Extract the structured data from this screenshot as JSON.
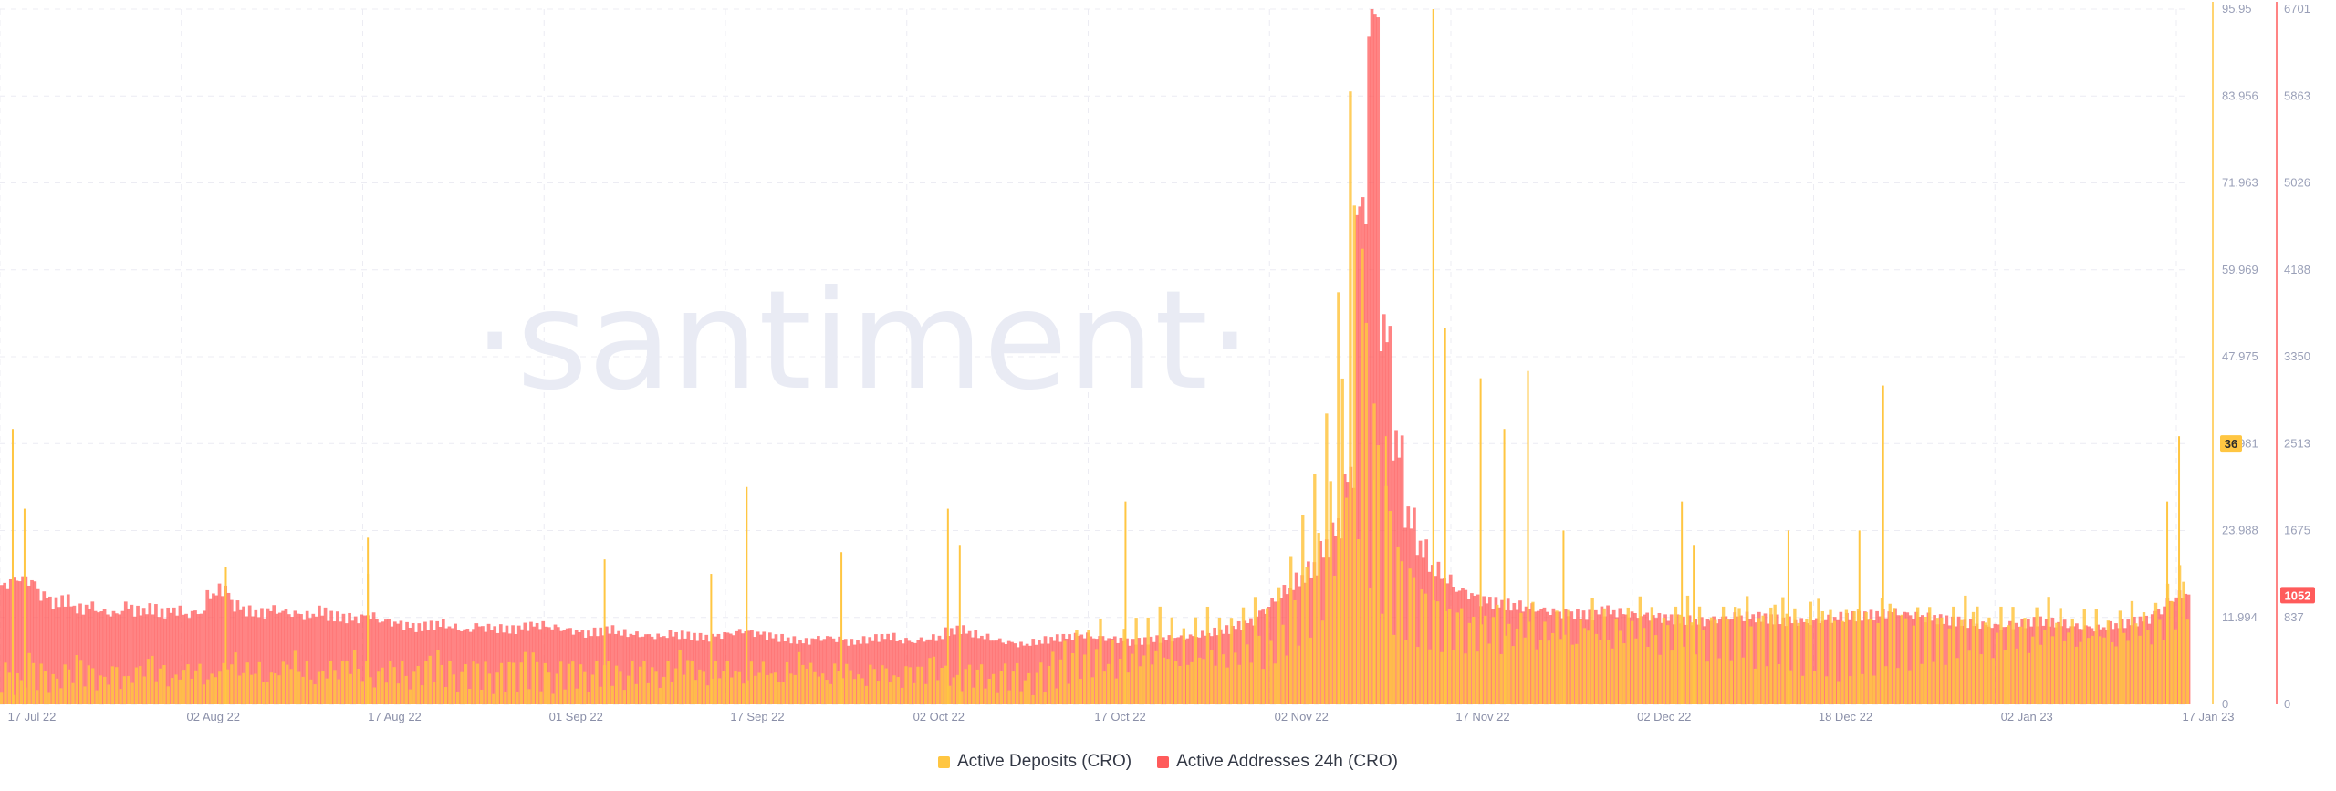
{
  "chart_data": {
    "type": "bar",
    "title": "",
    "watermark": "·santiment·",
    "x_ticks": [
      "17 Jul 22",
      "02 Aug 22",
      "17 Aug 22",
      "01 Sep 22",
      "17 Sep 22",
      "02 Oct 22",
      "17 Oct 22",
      "02 Nov 22",
      "17 Nov 22",
      "02 Dec 22",
      "18 Dec 22",
      "02 Jan 23",
      "17 Jan 23"
    ],
    "y_left_ticks": [
      "95.95",
      "83.956",
      "71.963",
      "59.969",
      "47.975",
      "35.981",
      "23.988",
      "11.994",
      "0"
    ],
    "y_right_ticks": [
      "6701",
      "5863",
      "5026",
      "4188",
      "3350",
      "2513",
      "1675",
      "837",
      "0"
    ],
    "y_left_range": [
      0,
      95.95
    ],
    "y_right_range": [
      0,
      6701
    ],
    "grid": true,
    "legend_position": "bottom-center",
    "current_values": {
      "deposits": "36",
      "addresses": "1052"
    },
    "colors": {
      "deposits": "#ffc642",
      "addresses": "#ff5b5b"
    },
    "x_date_range": [
      "2022-07-17",
      "2023-01-18"
    ],
    "series": [
      {
        "name": "Active Deposits (CRO)",
        "axis": "left",
        "daily_baseline": [
          4,
          3,
          5,
          4,
          3,
          4,
          5,
          4,
          3,
          4,
          3,
          4,
          5,
          4,
          3,
          4,
          4,
          3,
          4,
          5,
          4,
          4,
          3,
          4,
          5,
          4,
          3,
          4,
          4,
          5,
          4,
          3,
          4,
          4,
          3,
          4,
          5,
          4,
          3,
          4,
          4,
          3,
          4,
          4,
          5,
          4,
          3,
          4,
          4,
          3,
          4,
          4,
          3,
          4,
          4,
          3,
          4,
          5,
          4,
          3,
          4,
          4,
          3,
          4,
          4,
          3,
          4,
          5,
          4,
          3,
          4,
          4,
          3,
          4,
          4,
          3,
          4,
          4,
          5,
          4,
          3,
          4,
          4,
          3,
          4,
          4,
          3,
          4,
          5,
          6,
          7,
          7,
          8,
          6,
          7,
          8,
          8,
          9,
          8,
          7,
          8,
          9,
          8,
          8,
          9,
          10,
          9,
          11,
          14,
          18,
          22,
          28,
          40,
          60,
          45,
          30,
          22,
          16,
          14,
          12,
          11,
          10,
          10,
          9,
          9,
          10,
          8,
          9,
          10,
          8,
          9,
          9,
          8,
          10,
          9,
          8,
          9,
          10,
          9,
          8,
          9,
          10,
          9,
          8,
          9,
          9,
          10,
          8,
          9,
          10,
          9,
          8,
          10,
          9,
          8,
          9,
          9,
          8,
          10,
          9,
          8,
          9,
          9,
          8,
          9,
          10,
          9,
          8,
          9,
          9,
          8,
          9,
          10,
          9,
          8,
          9,
          9,
          8,
          9,
          10,
          9,
          10,
          12,
          14
        ],
        "spikes": [
          [
            "2022-07-18",
            38
          ],
          [
            "2022-07-19",
            27
          ],
          [
            "2022-08-05",
            19
          ],
          [
            "2022-08-17",
            23
          ],
          [
            "2022-08-17",
            18
          ],
          [
            "2022-09-06",
            20
          ],
          [
            "2022-09-15",
            18
          ],
          [
            "2022-09-18",
            30
          ],
          [
            "2022-09-26",
            21
          ],
          [
            "2022-10-05",
            27
          ],
          [
            "2022-10-06",
            22
          ],
          [
            "2022-10-20",
            28
          ],
          [
            "2022-11-07",
            23
          ],
          [
            "2022-11-10",
            31
          ],
          [
            "2022-11-11",
            37
          ],
          [
            "2022-11-15",
            96
          ],
          [
            "2022-11-16",
            52
          ],
          [
            "2022-11-19",
            45
          ],
          [
            "2022-11-21",
            38
          ],
          [
            "2022-11-23",
            46
          ],
          [
            "2022-11-26",
            24
          ],
          [
            "2022-12-06",
            28
          ],
          [
            "2022-12-07",
            22
          ],
          [
            "2022-12-15",
            24
          ],
          [
            "2022-12-21",
            24
          ],
          [
            "2022-12-23",
            44
          ],
          [
            "2023-01-17",
            37
          ],
          [
            "2023-01-16",
            28
          ]
        ]
      },
      {
        "name": "Active Addresses 24h (CRO)",
        "axis": "right",
        "daily": [
          1150,
          1200,
          1180,
          1050,
          980,
          1000,
          920,
          950,
          900,
          880,
          950,
          900,
          920,
          880,
          900,
          860,
          880,
          1050,
          1100,
          950,
          900,
          880,
          920,
          900,
          880,
          860,
          900,
          850,
          830,
          820,
          850,
          800,
          780,
          760,
          740,
          760,
          780,
          750,
          720,
          760,
          740,
          730,
          720,
          750,
          760,
          740,
          720,
          700,
          680,
          700,
          720,
          690,
          680,
          670,
          660,
          680,
          670,
          650,
          640,
          660,
          680,
          700,
          680,
          660,
          640,
          620,
          610,
          640,
          650,
          630,
          600,
          620,
          640,
          650,
          610,
          600,
          620,
          640,
          700,
          720,
          680,
          650,
          620,
          600,
          580,
          600,
          620,
          640,
          650,
          660,
          640,
          630,
          620,
          600,
          610,
          630,
          640,
          650,
          660,
          680,
          700,
          720,
          760,
          800,
          900,
          1000,
          1100,
          1200,
          1300,
          1500,
          1700,
          2200,
          4800,
          6700,
          3600,
          2500,
          1800,
          1500,
          1300,
          1200,
          1100,
          1050,
          1000,
          980,
          960,
          950,
          940,
          920,
          900,
          880,
          870,
          860,
          900,
          880,
          860,
          850,
          840,
          830,
          820,
          810,
          800,
          820,
          840,
          860,
          850,
          840,
          820,
          800,
          790,
          780,
          800,
          820,
          840,
          850,
          860,
          880,
          900,
          880,
          860,
          840,
          820,
          800,
          780,
          760,
          750,
          740,
          760,
          780,
          800,
          790,
          780,
          760,
          750,
          740,
          760,
          780,
          800,
          820,
          900,
          1000,
          1052
        ]
      }
    ]
  },
  "legend": {
    "items": [
      {
        "label": "Active Deposits (CRO)",
        "color": "#ffc642"
      },
      {
        "label": "Active Addresses 24h (CRO)",
        "color": "#ff5b5b"
      }
    ]
  }
}
